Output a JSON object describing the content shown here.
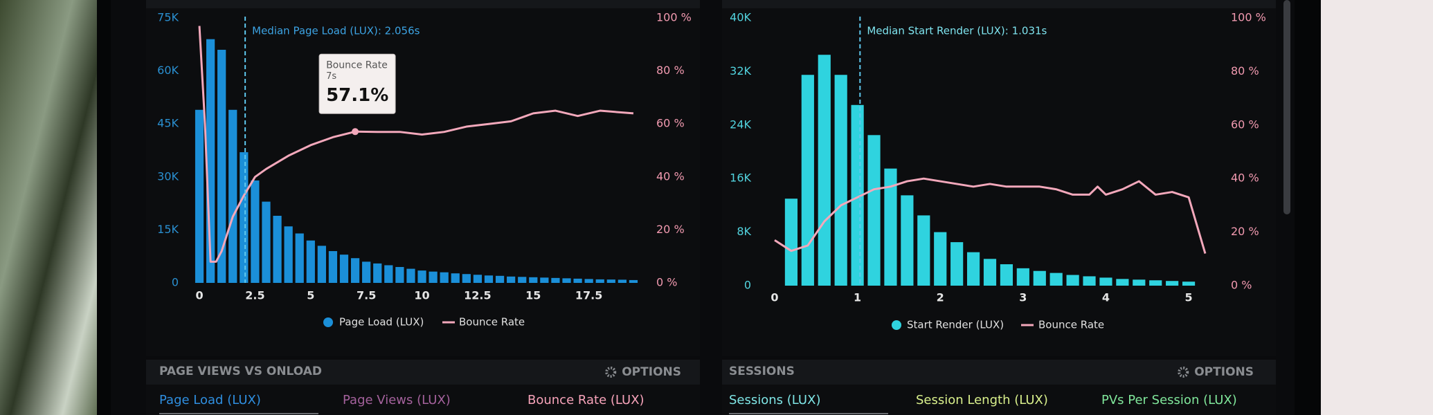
{
  "chart_data": [
    {
      "type": "histogram",
      "annotation": {
        "text": "Median Page Load (LUX): 2.056s",
        "x": 2.056
      },
      "tooltip": {
        "title": "Bounce Rate",
        "x_label": "7s",
        "x": 7,
        "value": 57.1,
        "value_label": "57.1%"
      },
      "bins": [
        -0.25,
        0.25,
        0.75,
        1.25,
        1.75,
        2.25,
        2.75,
        3.25,
        3.75,
        4.25,
        4.75,
        5.25,
        5.75,
        6.25,
        6.75,
        7.25,
        7.75,
        8.25,
        8.75,
        9.25,
        9.75,
        10.25,
        10.75,
        11.25,
        11.75,
        12.25,
        12.75,
        13.25,
        13.75,
        14.25,
        14.75,
        15.25,
        15.75,
        16.25,
        16.75,
        17.25,
        17.75,
        18.25,
        18.75,
        19.25,
        19.75
      ],
      "xlim": [
        -0.25,
        19.75
      ],
      "xticks": [
        0,
        2.5,
        5,
        7.5,
        10,
        12.5,
        15,
        17.5
      ],
      "ylim": [
        0,
        75000
      ],
      "yticks": [
        0,
        {
          "value": 15000,
          "label": "15K"
        },
        {
          "value": 30000,
          "label": "30K"
        },
        {
          "value": 45000,
          "label": "45K"
        },
        {
          "value": 60000,
          "label": "60K"
        },
        {
          "value": 75000,
          "label": "75K"
        }
      ],
      "y2lim": [
        0,
        100
      ],
      "y2ticks": [
        {
          "value": 0,
          "label": "0 %"
        },
        {
          "value": 20,
          "label": "20 %"
        },
        {
          "value": 40,
          "label": "40 %"
        },
        {
          "value": 60,
          "label": "60 %"
        },
        {
          "value": 80,
          "label": "80 %"
        },
        {
          "value": 100,
          "label": "100 %"
        }
      ],
      "series": [
        {
          "name": "Page Load (LUX)",
          "color": "#1b8fd8",
          "values": [
            49000,
            69000,
            66000,
            49000,
            37000,
            29000,
            23000,
            19000,
            16000,
            14000,
            12000,
            10500,
            9000,
            8000,
            7000,
            6000,
            5500,
            5000,
            4500,
            4000,
            3500,
            3200,
            3000,
            2700,
            2500,
            2300,
            2100,
            2000,
            1800,
            1700,
            1600,
            1500,
            1400,
            1300,
            1200,
            1100,
            1000,
            950,
            900,
            800
          ]
        },
        {
          "name": "Bounce Rate",
          "color": "#f3a8bb",
          "axis": "y2",
          "type": "line",
          "x": [
            0,
            0.25,
            0.5,
            0.75,
            1,
            1.5,
            2,
            2.5,
            3,
            4,
            5,
            6,
            7,
            8,
            9,
            10,
            11,
            12,
            13,
            14,
            15,
            16,
            17,
            18,
            19.5
          ],
          "values": [
            97,
            60,
            8,
            8,
            12,
            25,
            33,
            40,
            43,
            48,
            52,
            55,
            57.1,
            57,
            57,
            56,
            57,
            59,
            60,
            61,
            64,
            65,
            63,
            65,
            64
          ]
        }
      ]
    },
    {
      "type": "histogram",
      "annotation": {
        "text": "Median Start Render (LUX): 1.031s",
        "x": 1.031
      },
      "bins": [
        0.1,
        0.3,
        0.5,
        0.7,
        0.9,
        1.1,
        1.3,
        1.5,
        1.7,
        1.9,
        2.1,
        2.3,
        2.5,
        2.7,
        2.9,
        3.1,
        3.3,
        3.5,
        3.7,
        3.9,
        4.1,
        4.3,
        4.5,
        4.7,
        4.9,
        5.1
      ],
      "xlim": [
        0,
        5.2
      ],
      "xticks": [
        0,
        1,
        2,
        3,
        4,
        5
      ],
      "ylim": [
        0,
        40000
      ],
      "yticks": [
        0,
        {
          "value": 8000,
          "label": "8K"
        },
        {
          "value": 16000,
          "label": "16K"
        },
        {
          "value": 24000,
          "label": "24K"
        },
        {
          "value": 32000,
          "label": "32K"
        },
        {
          "value": 40000,
          "label": "40K"
        }
      ],
      "y2lim": [
        0,
        100
      ],
      "y2ticks": [
        {
          "value": 0,
          "label": "0 %"
        },
        {
          "value": 20,
          "label": "20 %"
        },
        {
          "value": 40,
          "label": "40 %"
        },
        {
          "value": 60,
          "label": "60 %"
        },
        {
          "value": 80,
          "label": "80 %"
        },
        {
          "value": 100,
          "label": "100 %"
        }
      ],
      "series": [
        {
          "name": "Start Render (LUX)",
          "color": "#2fd3df",
          "values": [
            13000,
            31500,
            34500,
            31500,
            27000,
            22500,
            17500,
            13500,
            10500,
            8000,
            6500,
            5000,
            4000,
            3200,
            2600,
            2200,
            1900,
            1600,
            1400,
            1200,
            1000,
            900,
            800,
            700,
            600
          ]
        },
        {
          "name": "Bounce Rate",
          "color": "#f3a8bb",
          "axis": "y2",
          "type": "line",
          "x": [
            0,
            0.2,
            0.4,
            0.6,
            0.8,
            1,
            1.2,
            1.4,
            1.6,
            1.8,
            2,
            2.2,
            2.4,
            2.6,
            2.8,
            3,
            3.2,
            3.4,
            3.6,
            3.8,
            3.9,
            4,
            4.2,
            4.4,
            4.6,
            4.8,
            5,
            5.2
          ],
          "values": [
            17,
            13,
            15,
            24,
            30,
            33,
            36,
            37,
            39,
            40,
            39,
            38,
            37,
            38,
            37,
            37,
            37,
            36,
            34,
            34,
            37,
            34,
            36,
            39,
            34,
            35,
            33,
            12
          ]
        }
      ]
    }
  ],
  "panels": [
    {
      "title": "PAGE VIEWS VS ONLOAD",
      "options": "OPTIONS",
      "tabs": [
        {
          "label": "Page Load (LUX)",
          "color": "#2f8fe0"
        },
        {
          "label": "Page Views (LUX)",
          "color": "#a5629d"
        },
        {
          "label": "Bounce Rate (LUX)",
          "color": "#f7a3ba"
        }
      ]
    },
    {
      "title": "SESSIONS",
      "options": "OPTIONS",
      "tabs": [
        {
          "label": "Sessions (LUX)",
          "color": "#7fe6e6"
        },
        {
          "label": "Session Length (LUX)",
          "color": "#d9f08c"
        },
        {
          "label": "PVs Per Session (LUX)",
          "color": "#80e79b"
        }
      ]
    }
  ]
}
